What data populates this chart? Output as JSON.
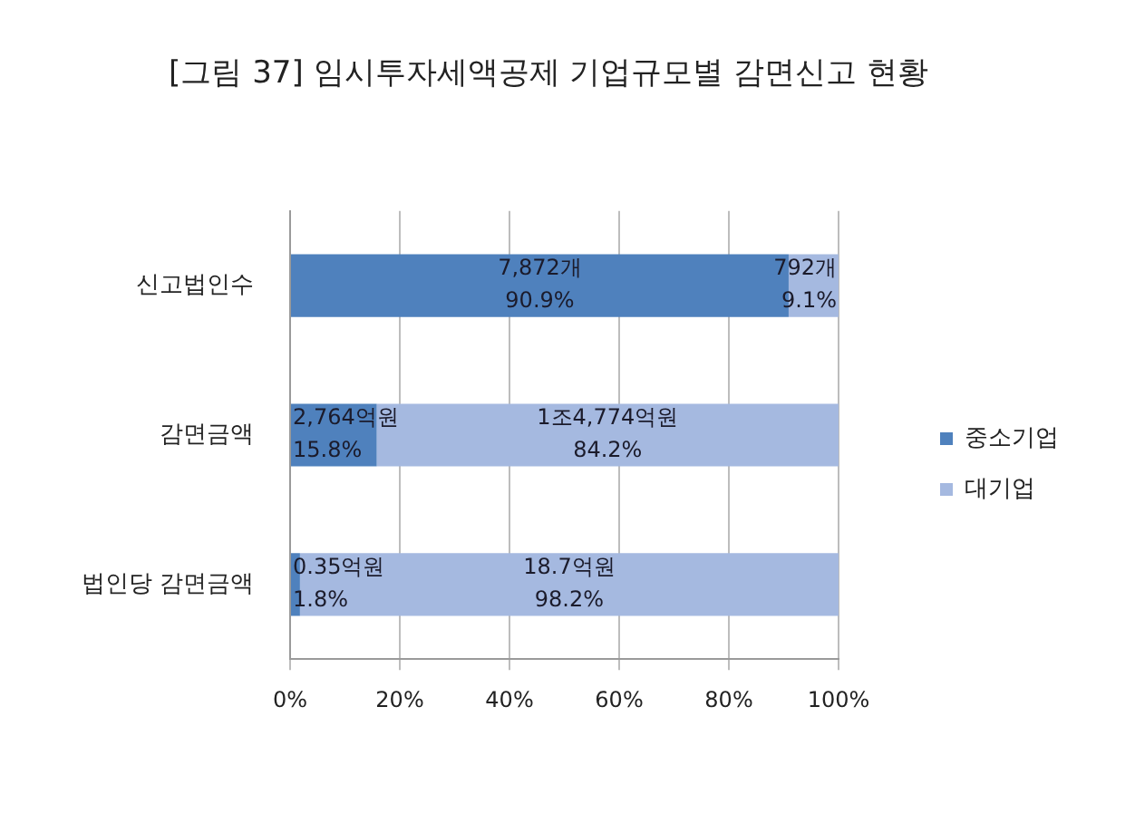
{
  "chart_data": {
    "type": "bar",
    "orientation": "horizontal",
    "stacked": true,
    "title": "[그림 37] 임시투자세액공제 기업규모별 감면신고 현황",
    "categories": [
      "신고법인수",
      "감면금액",
      "법인당 감면금액"
    ],
    "series": [
      {
        "name": "중소기업",
        "color": "#4f81bd",
        "values": [
          90.9,
          15.8,
          1.8
        ],
        "value_labels": [
          "7,872개\n90.9%",
          "2,764억원\n15.8%",
          "0.35억원\n1.8%"
        ]
      },
      {
        "name": "대기업",
        "color": "#a5b9e0",
        "values": [
          9.1,
          84.2,
          98.2
        ],
        "value_labels": [
          "792개\n9.1%",
          "1조4,774억원\n84.2%",
          "18.7억원\n98.2%"
        ]
      }
    ],
    "xlim": [
      0,
      100
    ],
    "xticks": [
      {
        "value": 0,
        "label": "0%"
      },
      {
        "value": 20,
        "label": "20%"
      },
      {
        "value": 40,
        "label": "40%"
      },
      {
        "value": 60,
        "label": "60%"
      },
      {
        "value": 80,
        "label": "80%"
      },
      {
        "value": 100,
        "label": "100%"
      }
    ],
    "grid": "x",
    "legend": "right"
  }
}
